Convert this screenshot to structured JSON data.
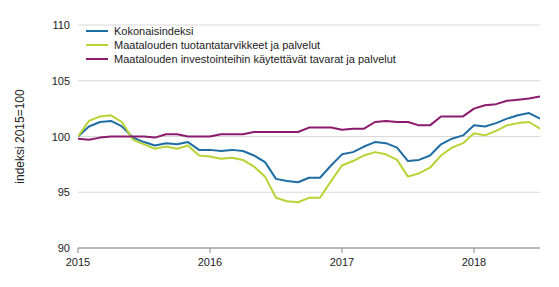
{
  "chart_data": {
    "type": "line",
    "y_label": "indeksi 2015=100",
    "x": [
      2015.0,
      2015.083,
      2015.167,
      2015.25,
      2015.333,
      2015.417,
      2015.5,
      2015.583,
      2015.667,
      2015.75,
      2015.833,
      2015.917,
      2016.0,
      2016.083,
      2016.167,
      2016.25,
      2016.333,
      2016.417,
      2016.5,
      2016.583,
      2016.667,
      2016.75,
      2016.833,
      2016.917,
      2017.0,
      2017.083,
      2017.167,
      2017.25,
      2017.333,
      2017.417,
      2017.5,
      2017.583,
      2017.667,
      2017.75,
      2017.833,
      2017.917,
      2018.0,
      2018.083,
      2018.167,
      2018.25,
      2018.333,
      2018.417,
      2018.5
    ],
    "series": [
      {
        "name": "Kokonaisindeksi",
        "color": "#1f6ea3",
        "values": [
          100.0,
          100.9,
          101.3,
          101.4,
          100.9,
          99.9,
          99.5,
          99.2,
          99.4,
          99.3,
          99.5,
          98.8,
          98.8,
          98.7,
          98.8,
          98.7,
          98.3,
          97.7,
          96.2,
          96.0,
          95.9,
          96.3,
          96.3,
          97.4,
          98.4,
          98.6,
          99.1,
          99.5,
          99.4,
          99.0,
          97.8,
          97.9,
          98.3,
          99.3,
          99.8,
          100.1,
          101.0,
          100.9,
          101.2,
          101.6,
          101.9,
          102.1,
          101.6
        ]
      },
      {
        "name": "Maatalouden tuotantatarvikkeet ja palvelut",
        "color": "#b7d334",
        "values": [
          100.0,
          101.4,
          101.8,
          101.9,
          101.3,
          99.7,
          99.3,
          98.9,
          99.1,
          98.9,
          99.2,
          98.3,
          98.2,
          98.0,
          98.1,
          97.9,
          97.3,
          96.4,
          94.5,
          94.2,
          94.1,
          94.5,
          94.5,
          96.0,
          97.4,
          97.8,
          98.3,
          98.6,
          98.4,
          97.9,
          96.4,
          96.7,
          97.2,
          98.3,
          99.0,
          99.4,
          100.3,
          100.1,
          100.5,
          101.0,
          101.2,
          101.3,
          100.7
        ]
      },
      {
        "name": "Maatalouden investointeihin käytettävät tavarat ja palvelut",
        "color": "#8c1a6e",
        "values": [
          99.8,
          99.7,
          99.9,
          100.0,
          100.0,
          100.0,
          100.0,
          99.9,
          100.2,
          100.2,
          100.0,
          100.0,
          100.0,
          100.2,
          100.2,
          100.2,
          100.4,
          100.4,
          100.4,
          100.4,
          100.4,
          100.8,
          100.8,
          100.8,
          100.6,
          100.7,
          100.7,
          101.3,
          101.4,
          101.3,
          101.3,
          101.0,
          101.0,
          101.8,
          101.8,
          101.8,
          102.5,
          102.8,
          102.9,
          103.2,
          103.3,
          103.4,
          103.6
        ]
      }
    ],
    "xlim": [
      2015,
      2018.5
    ],
    "xticks": [
      2015,
      2016,
      2017,
      2018
    ],
    "ylim": [
      90,
      110
    ],
    "yticks": [
      90,
      95,
      100,
      105,
      110
    ],
    "grid": true,
    "legend": "upper left"
  }
}
